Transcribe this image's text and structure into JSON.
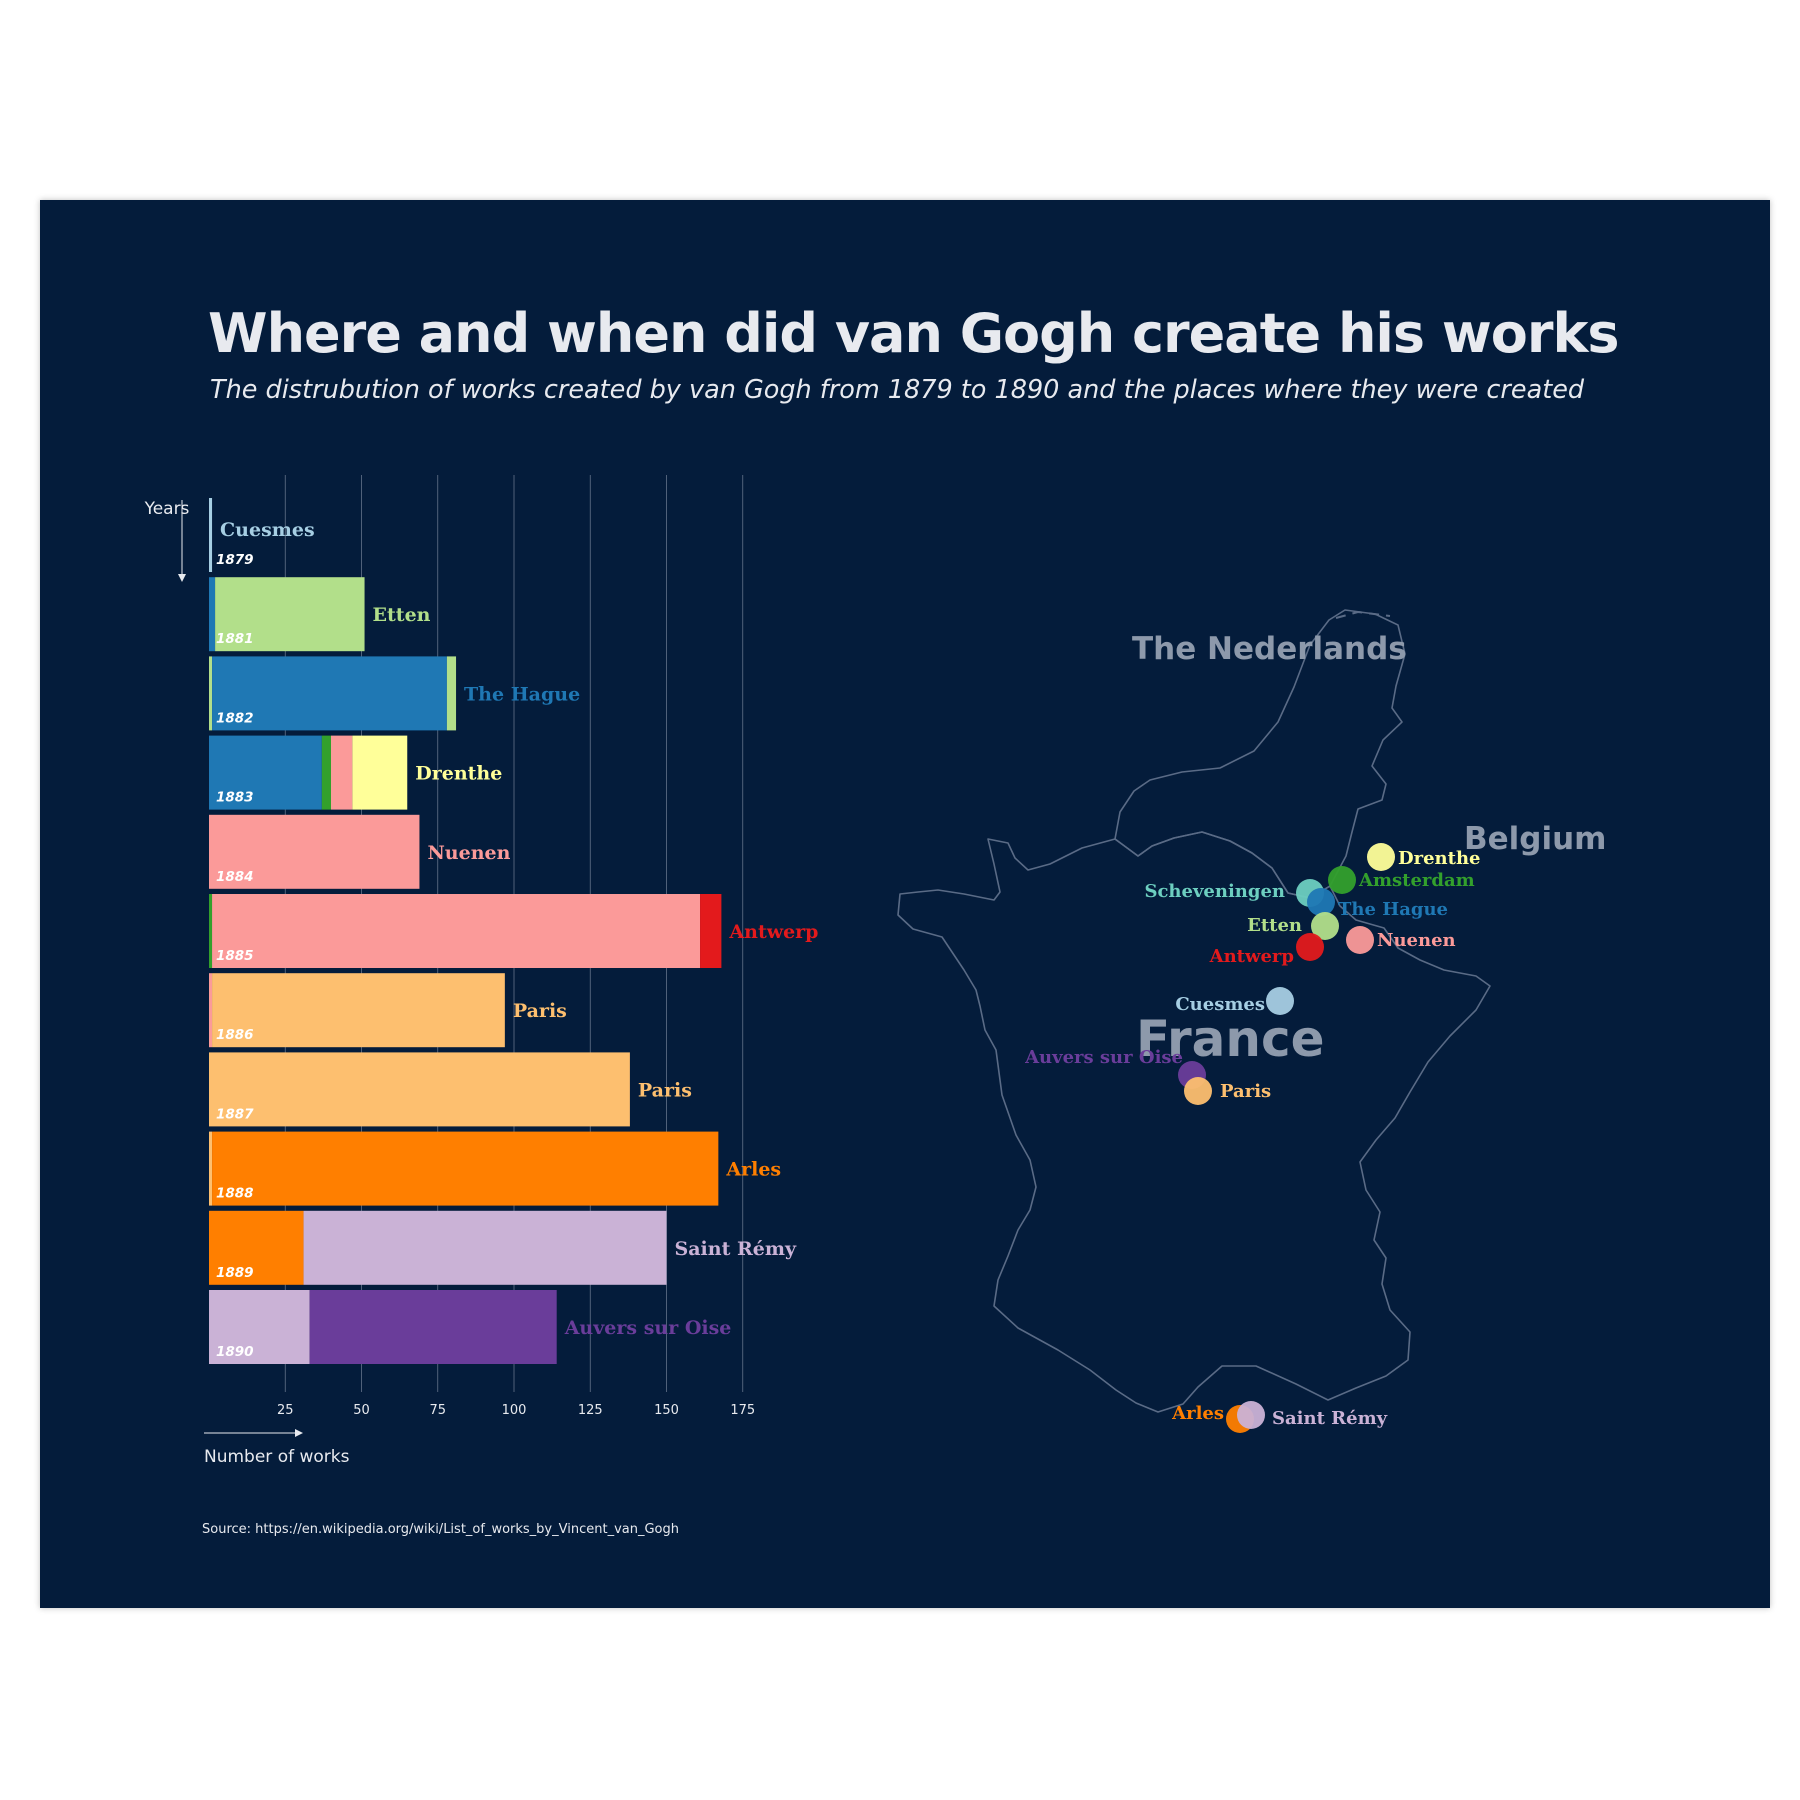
{
  "title": "Where and when did van Gogh create his works",
  "subtitle": "The distrubution of works created by van Gogh from 1879 to 1890 and the places where they were created",
  "source": "Source: https://en.wikipedia.org/wiki/List_of_works_by_Vincent_van_Gogh",
  "colors": {
    "background": "#041c3b",
    "text": "#e8eaef",
    "grid": "#8d99ab"
  },
  "places": {
    "Cuesmes": "#a6cee3",
    "Etten": "#b2df8a",
    "The Hague": "#1f78b4",
    "Amsterdam": "#33a02c",
    "Scheveningen": "#6dcfc0",
    "Drenthe": "#ffff99",
    "Nuenen": "#fb9a99",
    "Antwerp": "#e31a1c",
    "Paris": "#fdbf6f",
    "Arles": "#ff7f00",
    "Saint Rémy": "#cab2d6",
    "Auvers sur Oise": "#6a3d9a"
  },
  "chart_data": {
    "type": "bar",
    "orientation": "horizontal",
    "stacked": true,
    "xlabel": "Number of works",
    "ylabel": "Years",
    "xlim": [
      0,
      175
    ],
    "xticks": [
      25,
      50,
      75,
      100,
      125,
      150,
      175
    ],
    "grid": true,
    "rows": [
      {
        "year": "1879",
        "label": "Cuesmes",
        "segments": [
          {
            "place": "Cuesmes",
            "value": 1
          }
        ]
      },
      {
        "year": "1881",
        "label": "Etten",
        "segments": [
          {
            "place": "The Hague",
            "value": 2
          },
          {
            "place": "Etten",
            "value": 49
          }
        ]
      },
      {
        "year": "1882",
        "label": "The Hague",
        "segments": [
          {
            "place": "Etten",
            "value": 1
          },
          {
            "place": "The Hague",
            "value": 77
          },
          {
            "place": "Etten",
            "value": 3
          }
        ]
      },
      {
        "year": "1883",
        "label": "Drenthe",
        "segments": [
          {
            "place": "The Hague",
            "value": 37
          },
          {
            "place": "Amsterdam",
            "value": 3
          },
          {
            "place": "Nuenen",
            "value": 7
          },
          {
            "place": "Drenthe",
            "value": 18
          }
        ]
      },
      {
        "year": "1884",
        "label": "Nuenen",
        "segments": [
          {
            "place": "Nuenen",
            "value": 69
          }
        ]
      },
      {
        "year": "1885",
        "label": "Antwerp",
        "segments": [
          {
            "place": "Amsterdam",
            "value": 1
          },
          {
            "place": "Nuenen",
            "value": 160
          },
          {
            "place": "Antwerp",
            "value": 7
          }
        ]
      },
      {
        "year": "1886",
        "label": "Paris",
        "segments": [
          {
            "place": "Nuenen",
            "value": 1
          },
          {
            "place": "Paris",
            "value": 96
          }
        ]
      },
      {
        "year": "1887",
        "label": "Paris",
        "segments": [
          {
            "place": "Paris",
            "value": 138
          }
        ]
      },
      {
        "year": "1888",
        "label": "Arles",
        "segments": [
          {
            "place": "Paris",
            "value": 1
          },
          {
            "place": "Arles",
            "value": 166
          }
        ]
      },
      {
        "year": "1889",
        "label": "Saint Rémy",
        "segments": [
          {
            "place": "Arles",
            "value": 31
          },
          {
            "place": "Saint Rémy",
            "value": 119
          }
        ]
      },
      {
        "year": "1890",
        "label": "Auvers sur Oise",
        "segments": [
          {
            "place": "Saint Rémy",
            "value": 33
          },
          {
            "place": "Auvers sur Oise",
            "value": 81
          }
        ]
      }
    ]
  },
  "map": {
    "countries": [
      "The Nederlands",
      "Belgium",
      "France"
    ],
    "cities": [
      "Drenthe",
      "Amsterdam",
      "Scheveningen",
      "The Hague",
      "Etten",
      "Nuenen",
      "Antwerp",
      "Cuesmes",
      "Auvers sur Oise",
      "Paris",
      "Arles",
      "Saint Rémy"
    ]
  }
}
